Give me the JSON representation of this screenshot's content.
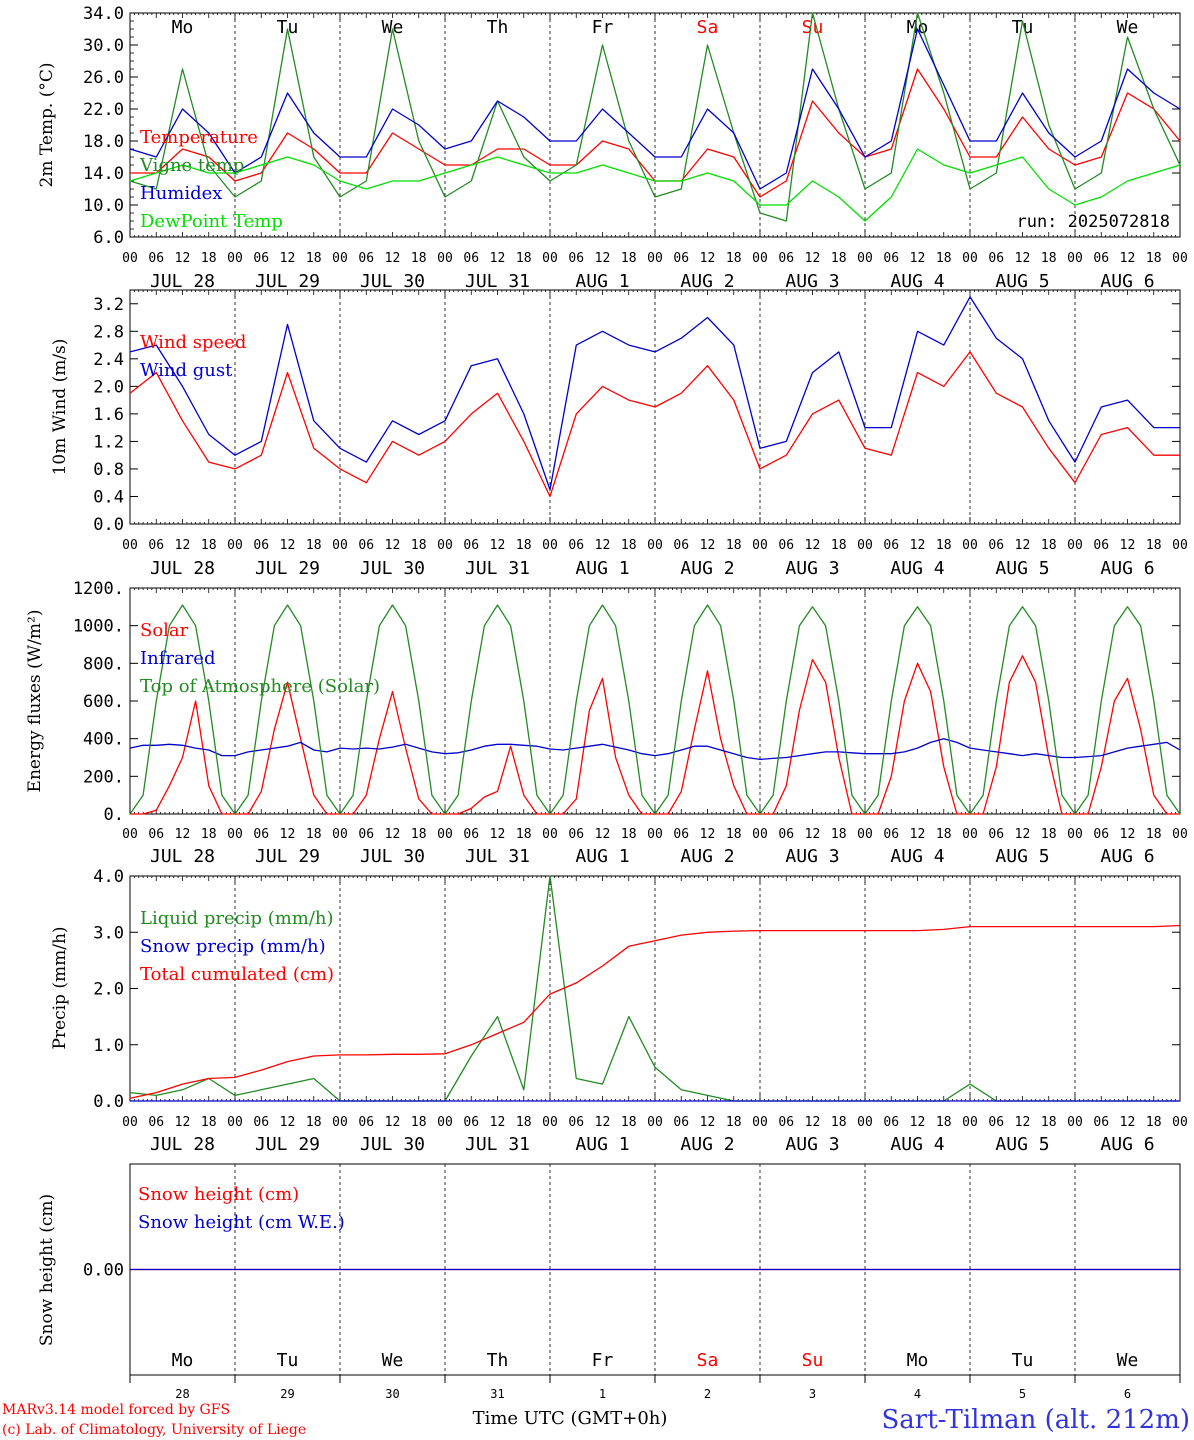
{
  "colors": {
    "red": "#ff0000",
    "green": "#228b22",
    "blue": "#0000cd",
    "lightgreen": "#00e000",
    "grid": "#000000"
  },
  "run_label": "run: 2025072818",
  "footer": {
    "model_line1": "MARv3.14 model forced by GFS",
    "model_line2": "(c) Lab. of Climatology, University of Liege",
    "xlabel": "Time UTC (GMT+0h)",
    "station": "Sart-Tilman (alt. 212m)"
  },
  "days": [
    {
      "dow": "Mo",
      "date": "JUL 28",
      "num": "28",
      "weekend": false
    },
    {
      "dow": "Tu",
      "date": "JUL 29",
      "num": "29",
      "weekend": false
    },
    {
      "dow": "We",
      "date": "JUL 30",
      "num": "30",
      "weekend": false
    },
    {
      "dow": "Th",
      "date": "JUL 31",
      "num": "31",
      "weekend": false
    },
    {
      "dow": "Fr",
      "date": "AUG  1",
      "num": "1",
      "weekend": false
    },
    {
      "dow": "Sa",
      "date": "AUG  2",
      "num": "2",
      "weekend": true
    },
    {
      "dow": "Su",
      "date": "AUG  3",
      "num": "3",
      "weekend": true
    },
    {
      "dow": "Mo",
      "date": "AUG  4",
      "num": "4",
      "weekend": false
    },
    {
      "dow": "Tu",
      "date": "AUG  5",
      "num": "5",
      "weekend": false
    },
    {
      "dow": "We",
      "date": "AUG  6",
      "num": "6",
      "weekend": false
    }
  ],
  "hour_ticks": [
    "00",
    "06",
    "12",
    "18"
  ],
  "chart_data": [
    {
      "type": "line",
      "ylabel": "2m Temp. (°C)",
      "ylim": [
        6,
        34
      ],
      "yticks": [
        "6.0",
        "10.0",
        "14.0",
        "18.0",
        "22.0",
        "26.0",
        "30.0",
        "34.0"
      ],
      "x_hours": [
        0,
        6,
        12,
        18,
        24,
        30,
        36,
        42,
        48,
        54,
        60,
        66,
        72,
        78,
        84,
        90,
        96,
        102,
        108,
        114,
        120,
        126,
        132,
        138,
        144,
        150,
        156,
        162,
        168,
        174,
        180,
        186,
        192,
        198,
        204,
        210,
        216,
        222,
        228,
        234,
        240
      ],
      "series": [
        {
          "name": "Temperature",
          "color": "red",
          "values": [
            14,
            14,
            17,
            16,
            13,
            14,
            19,
            17,
            14,
            14,
            19,
            17,
            15,
            15,
            17,
            17,
            15,
            15,
            18,
            17,
            13,
            13,
            17,
            16,
            11,
            13,
            23,
            19,
            16,
            17,
            27,
            22,
            16,
            16,
            21,
            17,
            15,
            16,
            24,
            22,
            18
          ]
        },
        {
          "name": "Vigne temp",
          "color": "green",
          "values": [
            13,
            12,
            27,
            15,
            11,
            13,
            32,
            16,
            11,
            13,
            32,
            18,
            11,
            13,
            23,
            16,
            13,
            15,
            30,
            18,
            11,
            12,
            30,
            19,
            9,
            8,
            34,
            22,
            12,
            14,
            34,
            24,
            12,
            14,
            33,
            20,
            12,
            14,
            31,
            22,
            15
          ]
        },
        {
          "name": "Humidex",
          "color": "blue",
          "values": [
            17,
            16,
            22,
            19,
            14,
            16,
            24,
            19,
            16,
            16,
            22,
            20,
            17,
            18,
            23,
            21,
            18,
            18,
            22,
            19,
            16,
            16,
            22,
            19,
            12,
            14,
            27,
            22,
            16,
            18,
            32,
            25,
            18,
            18,
            24,
            19,
            16,
            18,
            27,
            24,
            22
          ]
        },
        {
          "name": "DewPoint Temp",
          "color": "lightgreen",
          "values": [
            13,
            14,
            15,
            14,
            14,
            15,
            16,
            15,
            13,
            12,
            13,
            13,
            14,
            15,
            16,
            15,
            14,
            14,
            15,
            14,
            13,
            13,
            14,
            13,
            10,
            10,
            13,
            11,
            8,
            11,
            17,
            15,
            14,
            15,
            16,
            12,
            10,
            11,
            13,
            14,
            15
          ]
        }
      ]
    },
    {
      "type": "line",
      "ylabel": "10m Wind (m/s)",
      "ylim": [
        0,
        3.4
      ],
      "yticks": [
        "0.0",
        "0.4",
        "0.8",
        "1.2",
        "1.6",
        "2.0",
        "2.4",
        "2.8",
        "3.2"
      ],
      "x_hours": [
        0,
        6,
        12,
        18,
        24,
        30,
        36,
        42,
        48,
        54,
        60,
        66,
        72,
        78,
        84,
        90,
        96,
        102,
        108,
        114,
        120,
        126,
        132,
        138,
        144,
        150,
        156,
        162,
        168,
        174,
        180,
        186,
        192,
        198,
        204,
        210,
        216,
        222,
        228,
        234,
        240
      ],
      "series": [
        {
          "name": "Wind speed",
          "color": "red",
          "values": [
            1.9,
            2.2,
            1.5,
            0.9,
            0.8,
            1.0,
            2.2,
            1.1,
            0.8,
            0.6,
            1.2,
            1.0,
            1.2,
            1.6,
            1.9,
            1.2,
            0.4,
            1.6,
            2.0,
            1.8,
            1.7,
            1.9,
            2.3,
            1.8,
            0.8,
            1.0,
            1.6,
            1.8,
            1.1,
            1.0,
            2.2,
            2.0,
            2.5,
            1.9,
            1.7,
            1.1,
            0.6,
            1.3,
            1.4,
            1.0,
            1.0
          ]
        },
        {
          "name": "Wind gust",
          "color": "blue",
          "values": [
            2.5,
            2.6,
            2.0,
            1.3,
            1.0,
            1.2,
            2.9,
            1.5,
            1.1,
            0.9,
            1.5,
            1.3,
            1.5,
            2.3,
            2.4,
            1.6,
            0.5,
            2.6,
            2.8,
            2.6,
            2.5,
            2.7,
            3.0,
            2.6,
            1.1,
            1.2,
            2.2,
            2.5,
            1.4,
            1.4,
            2.8,
            2.6,
            3.3,
            2.7,
            2.4,
            1.5,
            0.9,
            1.7,
            1.8,
            1.4,
            1.4
          ]
        }
      ]
    },
    {
      "type": "line",
      "ylabel": "Energy fluxes (W/m²)",
      "ylim": [
        0,
        1200
      ],
      "yticks": [
        "0.",
        "200.",
        "400.",
        "600.",
        "800.",
        "1000.",
        "1200."
      ],
      "x_hours": [
        0,
        3,
        6,
        9,
        12,
        15,
        18,
        21,
        24,
        27,
        30,
        33,
        36,
        39,
        42,
        45,
        48,
        51,
        54,
        57,
        60,
        63,
        66,
        69,
        72,
        75,
        78,
        81,
        84,
        87,
        90,
        93,
        96,
        99,
        102,
        105,
        108,
        111,
        114,
        117,
        120,
        123,
        126,
        129,
        132,
        135,
        138,
        141,
        144,
        147,
        150,
        153,
        156,
        159,
        162,
        165,
        168,
        171,
        174,
        177,
        180,
        183,
        186,
        189,
        192,
        195,
        198,
        201,
        204,
        207,
        210,
        213,
        216,
        219,
        222,
        225,
        228,
        231,
        234,
        237,
        240
      ],
      "series": [
        {
          "name": "Solar",
          "color": "red",
          "values": [
            0,
            0,
            20,
            150,
            300,
            600,
            150,
            0,
            0,
            0,
            120,
            450,
            700,
            400,
            100,
            0,
            0,
            0,
            100,
            400,
            650,
            350,
            80,
            0,
            0,
            0,
            30,
            90,
            120,
            360,
            100,
            0,
            0,
            0,
            80,
            550,
            720,
            300,
            100,
            0,
            0,
            0,
            120,
            450,
            760,
            400,
            150,
            0,
            0,
            0,
            150,
            550,
            820,
            700,
            300,
            0,
            0,
            0,
            200,
            600,
            800,
            650,
            250,
            0,
            0,
            0,
            250,
            700,
            840,
            700,
            300,
            0,
            0,
            0,
            250,
            600,
            720,
            450,
            100,
            0,
            0
          ]
        },
        {
          "name": "Infrared",
          "color": "blue",
          "values": [
            350,
            365,
            365,
            370,
            365,
            350,
            340,
            310,
            310,
            330,
            340,
            350,
            360,
            380,
            340,
            330,
            350,
            345,
            350,
            345,
            355,
            370,
            350,
            330,
            320,
            325,
            340,
            360,
            370,
            370,
            365,
            360,
            345,
            340,
            350,
            360,
            370,
            355,
            340,
            320,
            310,
            320,
            340,
            360,
            360,
            340,
            320,
            300,
            290,
            295,
            300,
            310,
            320,
            330,
            330,
            325,
            320,
            320,
            320,
            330,
            350,
            380,
            400,
            380,
            350,
            340,
            330,
            320,
            310,
            320,
            310,
            300,
            300,
            305,
            310,
            330,
            350,
            360,
            370,
            380,
            340
          ]
        },
        {
          "name": "Top of Atmosphere (Solar)",
          "color": "green",
          "values": [
            0,
            100,
            600,
            1000,
            1110,
            1000,
            600,
            100,
            0,
            100,
            600,
            1000,
            1110,
            1000,
            600,
            100,
            0,
            100,
            600,
            1000,
            1110,
            1000,
            600,
            100,
            0,
            100,
            600,
            1000,
            1110,
            1000,
            600,
            100,
            0,
            100,
            600,
            1000,
            1110,
            1000,
            600,
            100,
            0,
            100,
            600,
            1000,
            1110,
            1000,
            600,
            100,
            0,
            100,
            600,
            1000,
            1100,
            1000,
            600,
            100,
            0,
            100,
            600,
            1000,
            1100,
            1000,
            600,
            100,
            0,
            100,
            600,
            1000,
            1100,
            1000,
            600,
            100,
            0,
            100,
            600,
            1000,
            1100,
            1000,
            600,
            100,
            0
          ]
        }
      ]
    },
    {
      "type": "line",
      "ylabel": "Precip (mm/h)",
      "ylim": [
        0,
        4.0
      ],
      "yticks": [
        "0.0",
        "1.0",
        "2.0",
        "3.0",
        "4.0"
      ],
      "x_hours": [
        0,
        6,
        12,
        18,
        24,
        30,
        36,
        42,
        48,
        54,
        60,
        66,
        72,
        78,
        84,
        90,
        96,
        102,
        108,
        114,
        120,
        126,
        132,
        138,
        144,
        150,
        156,
        162,
        168,
        174,
        180,
        186,
        192,
        198,
        204,
        210,
        216,
        222,
        228,
        234,
        240
      ],
      "series": [
        {
          "name": "Liquid precip (mm/h)",
          "color": "green",
          "values": [
            0.15,
            0.1,
            0.2,
            0.4,
            0.1,
            0.2,
            0.3,
            0.4,
            0.0,
            0.0,
            0.0,
            0.0,
            0.0,
            0.8,
            1.5,
            0.2,
            4.0,
            0.4,
            0.3,
            1.5,
            0.6,
            0.2,
            0.1,
            0.0,
            0.0,
            0.0,
            0.0,
            0.0,
            0.0,
            0.0,
            0.0,
            0.0,
            0.3,
            0.0,
            0.0,
            0.0,
            0.0,
            0.0,
            0.0,
            0.0,
            0.0
          ]
        },
        {
          "name": "Snow precip (mm/h)",
          "color": "blue",
          "values": [
            0,
            0,
            0,
            0,
            0,
            0,
            0,
            0,
            0,
            0,
            0,
            0,
            0,
            0,
            0,
            0,
            0,
            0,
            0,
            0,
            0,
            0,
            0,
            0,
            0,
            0,
            0,
            0,
            0,
            0,
            0,
            0,
            0,
            0,
            0,
            0,
            0,
            0,
            0,
            0,
            0
          ]
        },
        {
          "name": "Total cumulated (cm)",
          "color": "red",
          "values": [
            0.05,
            0.15,
            0.3,
            0.4,
            0.42,
            0.55,
            0.7,
            0.8,
            0.82,
            0.82,
            0.83,
            0.83,
            0.84,
            1.0,
            1.2,
            1.4,
            1.9,
            2.1,
            2.4,
            2.75,
            2.85,
            2.95,
            3.0,
            3.02,
            3.03,
            3.03,
            3.03,
            3.03,
            3.03,
            3.03,
            3.03,
            3.05,
            3.1,
            3.1,
            3.1,
            3.1,
            3.1,
            3.1,
            3.1,
            3.1,
            3.12
          ]
        }
      ]
    },
    {
      "type": "line",
      "ylabel": "Snow height (cm)",
      "ylim": [
        -1,
        1
      ],
      "yticks": [
        "0.00"
      ],
      "x_hours": [
        0,
        240
      ],
      "series": [
        {
          "name": "Snow height (cm)",
          "color": "red",
          "values": [
            0,
            0
          ]
        },
        {
          "name": "Snow height (cm W.E.)",
          "color": "blue",
          "values": [
            0,
            0
          ]
        }
      ]
    }
  ]
}
